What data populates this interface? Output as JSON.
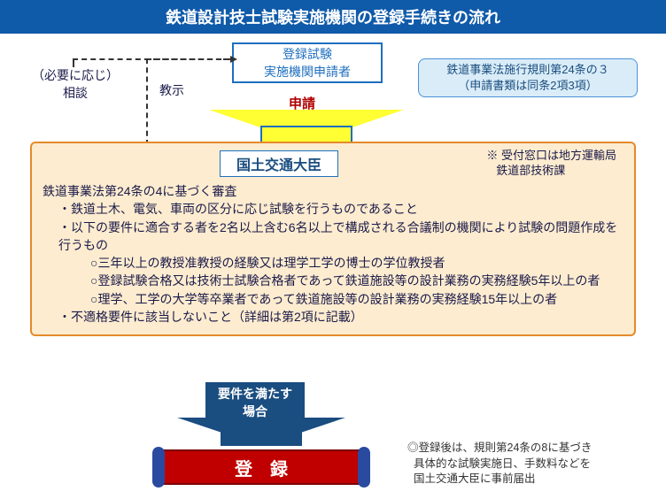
{
  "colors": {
    "title_bg": "#0f5aa9",
    "title_fg": "#ffffff",
    "applicant_border": "#1e6fbf",
    "applicant_text": "#1e6fbf",
    "applicant_bg": "#ffffff",
    "law_ref_bg": "#d9ecf7",
    "law_ref_border": "#4a90d9",
    "law_ref_text": "#1a4d80",
    "arrow1_fill": "#ffff33",
    "arrow1_border": "#1e6fbf",
    "apply_text": "#b00000",
    "main_bg": "#fdeccf",
    "main_border": "#e58a2a",
    "minister_bg": "#ffffff",
    "minister_border": "#1e6fbf",
    "minister_text": "#1a4d80",
    "body_text": "#1a1a4a",
    "cond_bg": "#1a4d80",
    "arrow2_fill": "#1a4d80",
    "reg_bg": "#c00000",
    "reg_border": "#7a0000",
    "reg_end": "#2a4aa0",
    "reg_text": "#ffffff",
    "note_text": "#333333"
  },
  "title": "鉄道設計技士試験実施機関の登録手続きの流れ",
  "applicant": {
    "line1": "登録試験",
    "line2": "実施機関申請者"
  },
  "consult": {
    "line1": "（必要に応じ）",
    "line2": "相談"
  },
  "instruct": "教示",
  "apply_label": "申請",
  "law_ref": {
    "line1": "鉄道事業法施行規則第24条の３",
    "line2": "（申請書類は同条2項3項）"
  },
  "minister": "国土交通大臣",
  "receipt_note": {
    "prefix": "※",
    "line1": "受付窓口は地方運輸局",
    "line2": "鉄道部技術課"
  },
  "criteria_heading": "鉄道事業法第24条の4に基づく審査",
  "criteria": [
    "・鉄道土木、電気、車両の区分に応じ試験を行うものであること",
    "・以下の要件に適合する者を2名以上含む6名以上で構成される合議制の機関により試験の問題作成を行うもの",
    "○三年以上の教授准教授の経験又は理学工学の博士の学位教授者",
    "○登録試験合格又は技術士試験合格者であって鉄道施設等の設計業務の実務経験5年以上の者",
    "○理学、工学の大学等卒業者であって鉄道施設等の設計業務の実務経験15年以上の者",
    "・不適格要件に該当しないこと（詳細は第2項に記載）"
  ],
  "condition_label": {
    "line1": "要件を満たす",
    "line2": "場合"
  },
  "registration": "登録",
  "post_note": {
    "line1": "◎登録後は、規則第24条の8に基づき",
    "line2": "具体的な試験実施日、手数料などを",
    "line3": "国土交通大臣に事前届出"
  }
}
